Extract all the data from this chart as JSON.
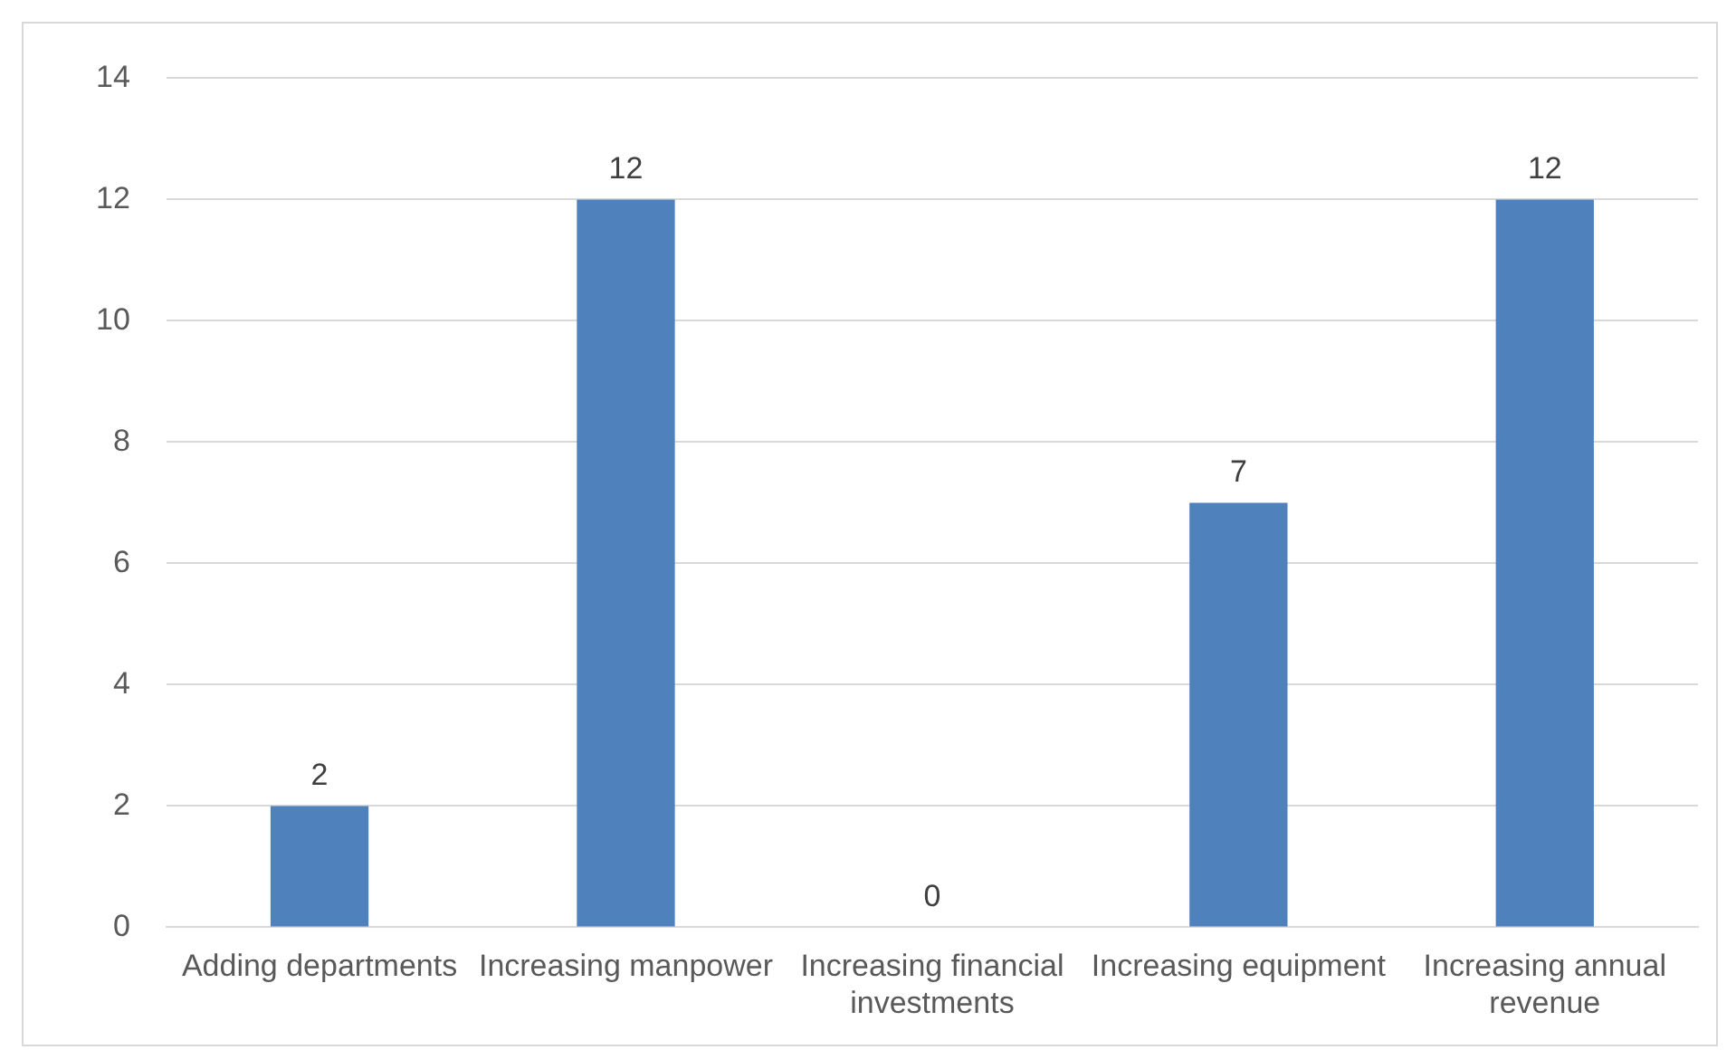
{
  "chart_data": {
    "type": "bar",
    "categories": [
      "Adding departments",
      "Increasing manpower",
      "Increasing financial investments",
      "Increasing equipment",
      "Increasing annual revenue"
    ],
    "values": [
      2,
      12,
      0,
      7,
      12
    ],
    "color": "#4f81bd",
    "ylim": [
      0,
      14
    ],
    "yticks": [
      0,
      2,
      4,
      6,
      8,
      10,
      12,
      14
    ],
    "grid": "y",
    "data_labels": true,
    "legend": false
  }
}
